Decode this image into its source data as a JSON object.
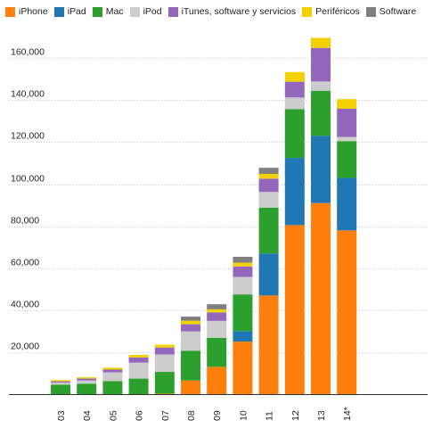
{
  "chart_data": {
    "type": "bar",
    "stacked": true,
    "title": "",
    "xlabel": "",
    "ylabel": "",
    "ylim": [
      0,
      172000
    ],
    "yticks": [
      20000,
      40000,
      60000,
      80000,
      100000,
      120000,
      140000,
      160000
    ],
    "ytick_labels": [
      "20,000",
      "40,000",
      "60,000",
      "80,000",
      "100,000",
      "120,000",
      "140,000",
      "160,000"
    ],
    "grid": "horizontal dotted",
    "legend_position": "top-left",
    "categories": [
      "03",
      "04",
      "05",
      "06",
      "07",
      "08",
      "09",
      "10",
      "11",
      "12",
      "13",
      "14*"
    ],
    "series": [
      {
        "name": "iPhone",
        "color": "#ff7f0e",
        "values": [
          0,
          0,
          0,
          0,
          200,
          6500,
          13000,
          25000,
          47000,
          80500,
          91000,
          78000
        ]
      },
      {
        "name": "iPad",
        "color": "#1f77b4",
        "values": [
          0,
          0,
          0,
          0,
          0,
          0,
          0,
          5000,
          20000,
          32000,
          32000,
          25000
        ]
      },
      {
        "name": "Mac",
        "color": "#2ca02c",
        "values": [
          4500,
          5000,
          6200,
          7400,
          10400,
          14200,
          13800,
          17500,
          21800,
          23200,
          21500,
          17500
        ]
      },
      {
        "name": "iPod",
        "color": "#cccccc",
        "values": [
          1000,
          1500,
          4200,
          7600,
          8300,
          9200,
          8100,
          8300,
          7500,
          5600,
          4400,
          2000
        ]
      },
      {
        "name": "iTunes, software y servicios",
        "color": "#9467bd",
        "values": [
          600,
          900,
          1300,
          2500,
          3300,
          3400,
          4000,
          5000,
          6300,
          7500,
          16000,
          13500
        ]
      },
      {
        "name": "Periféricos",
        "color": "#f5d000",
        "values": [
          600,
          600,
          900,
          1200,
          1300,
          1700,
          1500,
          1800,
          2300,
          4600,
          4800,
          4500
        ]
      },
      {
        "name": "Software",
        "color": "#7f7f7f",
        "values": [
          0,
          0,
          0,
          0,
          0,
          1900,
          2400,
          2800,
          2900,
          0,
          0,
          0
        ]
      }
    ]
  }
}
